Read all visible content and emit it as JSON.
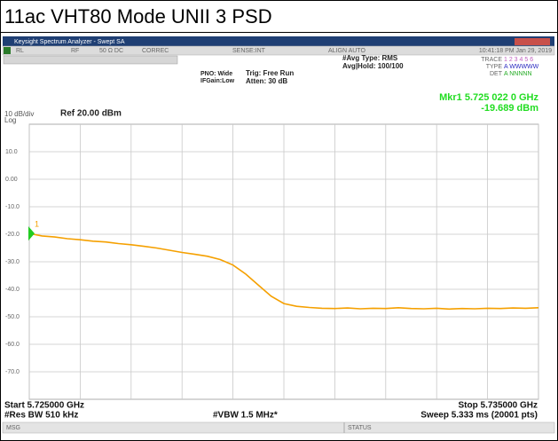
{
  "title": "11ac VHT80 Mode UNII 3 PSD",
  "window": {
    "title": "Keysight Spectrum Analyzer - Swept SA",
    "toolbar": [
      "RL",
      "RF",
      "50 Ω  DC",
      "CORREC",
      "SENSE:INT",
      "ALIGN AUTO",
      "10:41:18 PM Jan 29, 2019"
    ]
  },
  "settings": {
    "pno": "PNO: Wide",
    "ifgain": "IFGain:Low",
    "trig": "Trig: Free Run",
    "atten": "Atten: 30 dB",
    "avg_type": "#Avg Type: RMS",
    "avg_hold": "Avg|Hold: 100/100",
    "trace_label": "TRACE",
    "trace_numbers": "1 2 3 4 5 6",
    "type_label": "TYPE",
    "type_value": "A WWWWW",
    "det_label": "DET",
    "det_value": "A NNNNN"
  },
  "marker": {
    "label": "1",
    "freq": "Mkr1 5.725 022 0 GHz",
    "level": "-19.689 dBm"
  },
  "scale": {
    "div": "10 dB/div",
    "log": "Log",
    "ref": "Ref 20.00 dBm"
  },
  "chart_data": {
    "type": "line",
    "x": [
      5.725,
      5.72525,
      5.7255,
      5.72575,
      5.726,
      5.72625,
      5.7265,
      5.72675,
      5.727,
      5.72725,
      5.7275,
      5.72775,
      5.728,
      5.72825,
      5.7285,
      5.72875,
      5.729,
      5.72925,
      5.7295,
      5.72975,
      5.73,
      5.73025,
      5.7305,
      5.73075,
      5.731,
      5.73125,
      5.7315,
      5.73175,
      5.732,
      5.73225,
      5.7325,
      5.73275,
      5.733,
      5.73325,
      5.7335,
      5.73375,
      5.734,
      5.73425,
      5.7345,
      5.73475,
      5.735
    ],
    "series": [
      {
        "color": "#f5a000",
        "values": [
          -19.7,
          -20.6,
          -21.0,
          -21.6,
          -22.0,
          -22.5,
          -22.8,
          -23.4,
          -23.8,
          -24.4,
          -25.0,
          -25.8,
          -26.6,
          -27.3,
          -28.0,
          -29.2,
          -31.2,
          -34.5,
          -38.5,
          -42.5,
          -45.2,
          -46.2,
          -46.6,
          -46.9,
          -47.0,
          -46.8,
          -47.1,
          -46.9,
          -47.0,
          -46.7,
          -47.0,
          -47.1,
          -46.9,
          -47.2,
          -47.0,
          -47.1,
          -46.9,
          -47.0,
          -46.8,
          -46.9,
          -46.7
        ]
      }
    ],
    "xlim": [
      5.725,
      5.735
    ],
    "xticks": [
      5.725,
      5.726,
      5.727,
      5.728,
      5.729,
      5.73,
      5.731,
      5.732,
      5.733,
      5.734,
      5.735
    ],
    "ylim": [
      -80,
      20
    ],
    "yticks": [
      {
        "value": 10,
        "label": "10.0"
      },
      {
        "value": 0,
        "label": "0.00"
      },
      {
        "value": -10,
        "label": "-10.0"
      },
      {
        "value": -20,
        "label": "-20.0"
      },
      {
        "value": -30,
        "label": "-30.0"
      },
      {
        "value": -40,
        "label": "-40.0"
      },
      {
        "value": -50,
        "label": "-50.0"
      },
      {
        "value": -60,
        "label": "-60.0"
      },
      {
        "value": -70,
        "label": "-70.0"
      }
    ],
    "grid": true
  },
  "footer": {
    "start": "Start 5.725000 GHz",
    "rbw": "#Res BW 510 kHz",
    "vbw": "#VBW 1.5 MHz*",
    "stop": "Stop 5.735000 GHz",
    "sweep": "Sweep  5.333 ms (20001 pts)"
  },
  "status": {
    "msg": "MSG",
    "status": "STATUS"
  }
}
